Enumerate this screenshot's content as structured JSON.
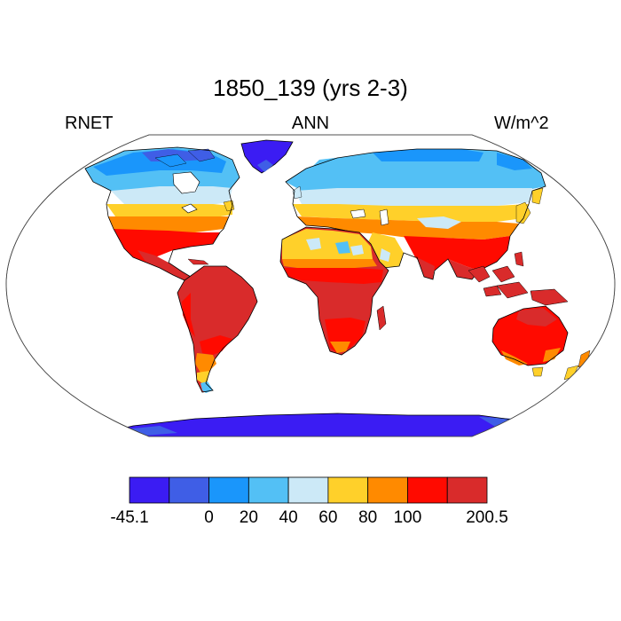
{
  "title": "1850_139 (yrs 2-3)",
  "left_label": "RNET",
  "center_label": "ANN",
  "right_label": "W/m^2",
  "colors": {
    "ocean": "#ffffff",
    "outline": "#000000"
  },
  "colorbar": {
    "colors": [
      "#3b1cf3",
      "#3f5ee6",
      "#1a96fb",
      "#53c0f5",
      "#cce9f7",
      "#ffd02a",
      "#ff8a00",
      "#ff0a00",
      "#d92b2b"
    ],
    "tick_labels": [
      {
        "text": "-45.1",
        "boundary": 0
      },
      {
        "text": "0",
        "boundary": 2
      },
      {
        "text": "20",
        "boundary": 3
      },
      {
        "text": "40",
        "boundary": 4
      },
      {
        "text": "60",
        "boundary": 5
      },
      {
        "text": "80",
        "boundary": 6
      },
      {
        "text": "100",
        "boundary": 7
      },
      {
        "text": "200.5",
        "boundary": 9
      }
    ]
  }
}
